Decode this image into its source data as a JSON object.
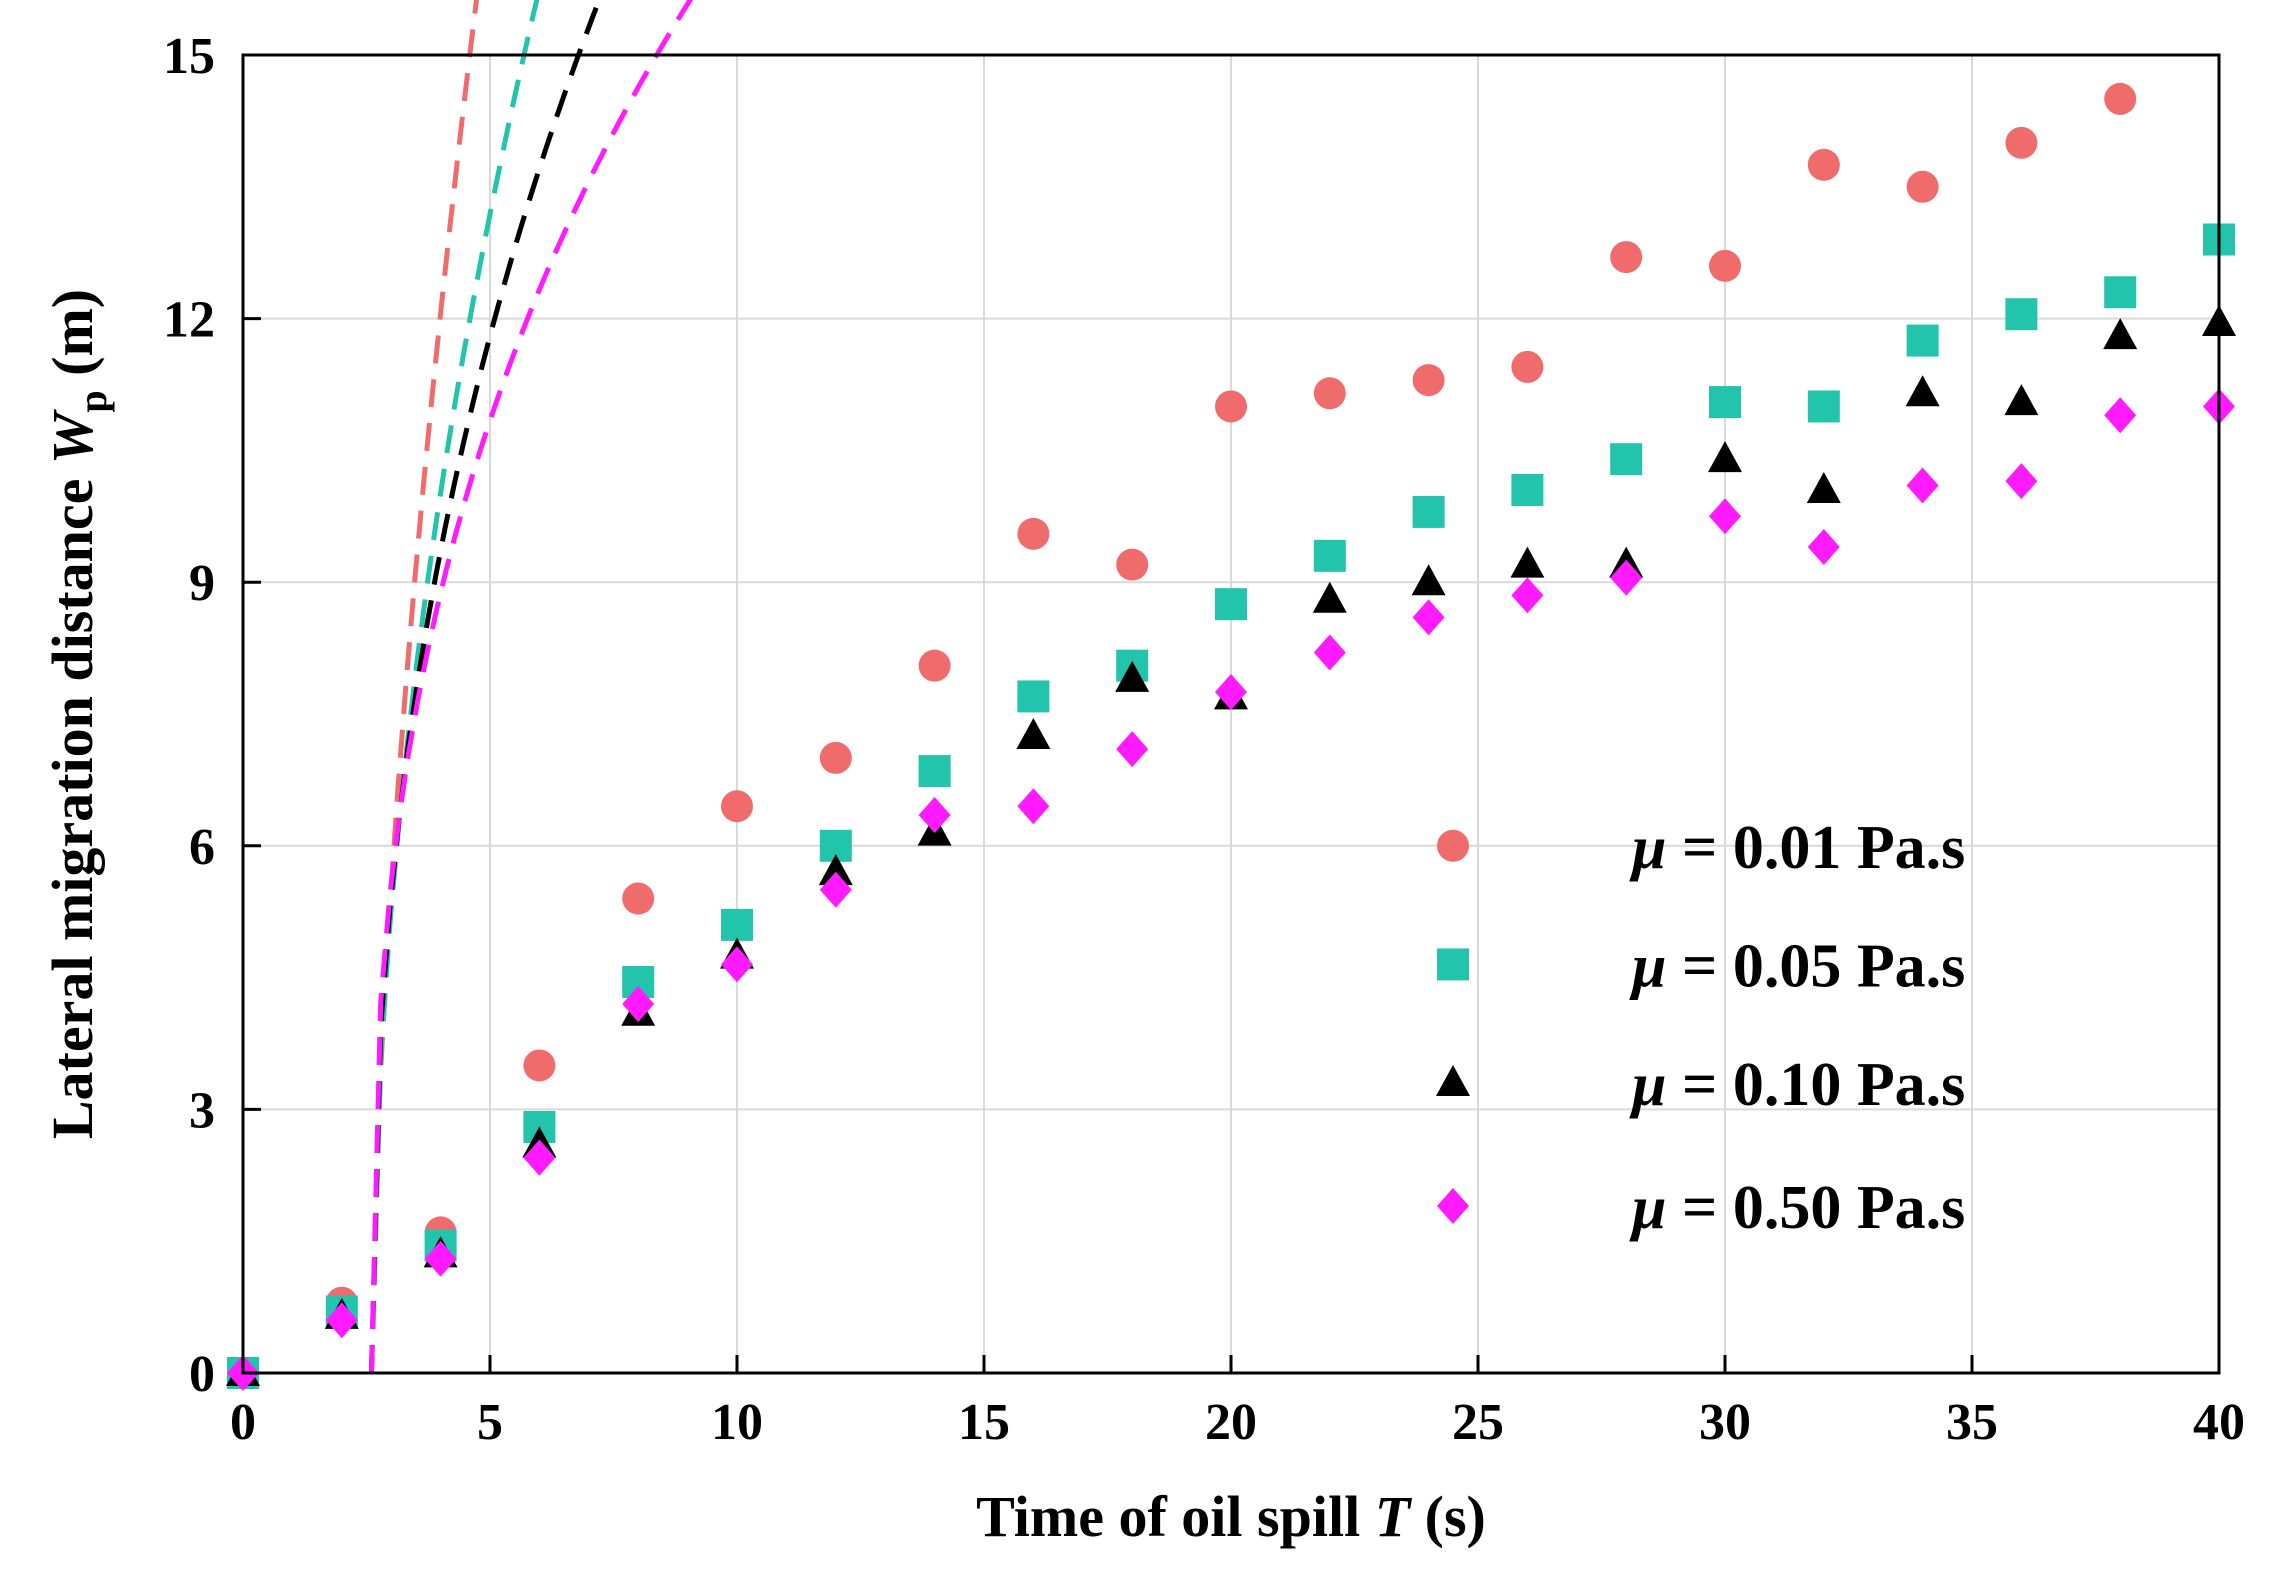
{
  "chart_data": {
    "type": "scatter",
    "title": "",
    "xlabel": {
      "prefix": "Time of oil spill ",
      "var": "T",
      "suffix": " (s)"
    },
    "ylabel": {
      "prefix": "Lateral migration distance ",
      "var": "W",
      "sub": "p",
      "suffix": " (m)"
    },
    "xlim": [
      0,
      40
    ],
    "ylim": [
      0,
      15
    ],
    "xticks": [
      0,
      5,
      10,
      15,
      20,
      25,
      30,
      35,
      40
    ],
    "yticks": [
      0,
      3,
      6,
      9,
      12,
      15
    ],
    "grid": true,
    "legend_position": "lower-right",
    "series": [
      {
        "name": "μ = 0.01 Pa.s",
        "legend": {
          "mu": "μ",
          "rest": " = 0.01 Pa.s"
        },
        "marker": "circle",
        "color": "#F06C6C",
        "x": [
          0,
          2,
          4,
          6,
          8,
          10,
          12,
          14,
          16,
          18,
          20,
          22,
          24,
          26,
          28,
          30,
          32,
          34,
          36,
          38
        ],
        "y": [
          0,
          0.8,
          1.6,
          3.5,
          5.4,
          6.45,
          7.0,
          8.05,
          9.55,
          9.2,
          11.0,
          11.15,
          11.3,
          11.45,
          12.7,
          12.6,
          13.75,
          13.5,
          14.0,
          14.5
        ],
        "fit": {
          "x0": 2.6,
          "x1": 38,
          "a": 9.79,
          "k": 0.62
        }
      },
      {
        "name": "μ = 0.05 Pa.s",
        "legend": {
          "mu": "μ",
          "rest": " = 0.05 Pa.s"
        },
        "marker": "square",
        "color": "#22C4AB",
        "x": [
          0,
          2,
          4,
          6,
          8,
          10,
          12,
          14,
          16,
          18,
          20,
          22,
          24,
          26,
          28,
          30,
          32,
          34,
          36,
          38,
          40
        ],
        "y": [
          0,
          0.7,
          1.45,
          2.8,
          4.45,
          5.1,
          6.0,
          6.85,
          7.7,
          8.05,
          8.75,
          9.3,
          9.8,
          10.05,
          10.4,
          11.05,
          11.0,
          11.75,
          12.05,
          12.3,
          12.9
        ],
        "fit": {
          "x0": 2.6,
          "x1": 40,
          "a": 8.44,
          "k": 0.51
        }
      },
      {
        "name": "μ = 0.10 Pa.s",
        "legend": {
          "mu": "μ",
          "rest": " = 0.10 Pa.s"
        },
        "marker": "triangle",
        "color": "#000000",
        "x": [
          0,
          2,
          4,
          6,
          8,
          10,
          12,
          14,
          16,
          18,
          20,
          22,
          24,
          26,
          28,
          30,
          32,
          34,
          36,
          38,
          40
        ],
        "y": [
          0,
          0.65,
          1.35,
          2.6,
          4.1,
          4.75,
          5.7,
          6.15,
          7.25,
          7.9,
          7.7,
          8.8,
          9.0,
          9.2,
          9.2,
          10.4,
          10.05,
          11.15,
          11.05,
          11.8,
          11.95
        ],
        "fit": {
          "x0": 2.6,
          "x1": 40,
          "a": 8.1,
          "k": 0.43
        }
      },
      {
        "name": "μ = 0.50 Pa.s",
        "legend": {
          "mu": "μ",
          "rest": " = 0.50 Pa.s"
        },
        "marker": "diamond",
        "color": "#FF1AFF",
        "x": [
          0,
          2,
          4,
          6,
          8,
          10,
          12,
          14,
          16,
          18,
          20,
          22,
          24,
          26,
          28,
          30,
          32,
          34,
          36,
          38,
          40
        ],
        "y": [
          0,
          0.6,
          1.3,
          2.45,
          4.2,
          4.65,
          5.5,
          6.35,
          6.45,
          7.1,
          7.75,
          8.2,
          8.6,
          8.85,
          9.05,
          9.75,
          9.4,
          10.1,
          10.15,
          10.9,
          11.0
        ],
        "fit": {
          "x0": 2.6,
          "x1": 40,
          "a": 7.84,
          "k": 0.37
        }
      }
    ]
  }
}
